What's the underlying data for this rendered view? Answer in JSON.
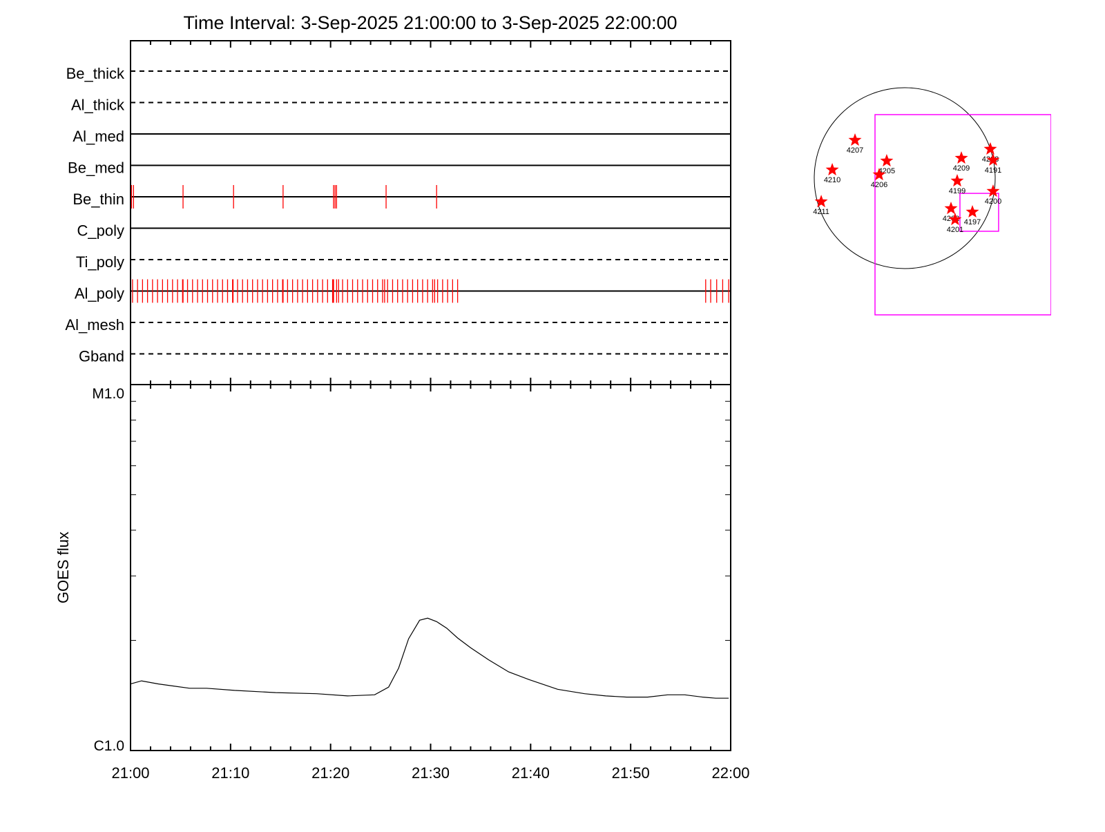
{
  "chart_data": [
    {
      "type": "event-timeline",
      "title": "Time Interval:  3-Sep-2025 21:00:00 to  3-Sep-2025 22:00:00",
      "x_unit": "minutes after 21:00",
      "xlim": [
        0,
        60
      ],
      "rows": [
        {
          "name": "Be_thick",
          "style": "dashed",
          "events": []
        },
        {
          "name": "Al_thick",
          "style": "dashed",
          "events": []
        },
        {
          "name": "Al_med",
          "style": "solid",
          "events": []
        },
        {
          "name": "Be_med",
          "style": "solid",
          "events": []
        },
        {
          "name": "Be_thin",
          "style": "solid",
          "events": [
            0.1,
            0.3,
            5.25,
            10.3,
            15.25,
            20.3,
            20.45,
            20.6,
            25.55,
            30.6
          ]
        },
        {
          "name": "C_poly",
          "style": "solid",
          "events": []
        },
        {
          "name": "Ti_poly",
          "style": "dashed",
          "events": []
        },
        {
          "name": "Al_poly",
          "style": "solid",
          "events": [
            0.2,
            0.7,
            1.2,
            1.7,
            2.2,
            2.7,
            3.2,
            3.7,
            4.2,
            4.7,
            5.2,
            5.25,
            5.7,
            6.2,
            6.7,
            7.2,
            7.7,
            8.2,
            8.7,
            9.2,
            9.7,
            10.2,
            10.25,
            10.7,
            11.2,
            11.7,
            12.2,
            12.7,
            13.2,
            13.7,
            14.2,
            14.7,
            15.2,
            15.25,
            15.7,
            16.2,
            16.7,
            17.2,
            17.7,
            18.2,
            18.7,
            19.2,
            19.7,
            20.2,
            20.25,
            20.3,
            20.6,
            20.8,
            21.2,
            21.7,
            22.2,
            22.7,
            23.2,
            23.7,
            24.2,
            24.7,
            25.2,
            25.4,
            25.7,
            26.2,
            26.7,
            27.2,
            27.7,
            28.2,
            28.7,
            29.2,
            29.7,
            30.2,
            30.4,
            30.7,
            31.2,
            31.7,
            32.2,
            32.7,
            57.5,
            58.0,
            58.6,
            59.2,
            59.8
          ]
        },
        {
          "name": "Al_mesh",
          "style": "dashed",
          "events": []
        },
        {
          "name": "Gband",
          "style": "dashed",
          "events": []
        }
      ],
      "event_color": "#ff0000"
    },
    {
      "type": "line",
      "ylabel": "GOES flux",
      "yscale": "log",
      "ylim": [
        1e-06,
        1e-05
      ],
      "ytick_labels": [
        {
          "value": 1e-05,
          "label": "M1.0"
        },
        {
          "value": 1e-06,
          "label": "C1.0"
        }
      ],
      "xlim": [
        0,
        60
      ],
      "xtick_labels": [
        "21:00",
        "21:10",
        "21:20",
        "21:30",
        "21:40",
        "21:50",
        "22:00"
      ],
      "x_minutes": [
        0,
        1.1,
        2.8,
        5.9,
        7.6,
        10.4,
        14.5,
        18.6,
        21.7,
        24.4,
        25.8,
        26.8,
        27.8,
        28.9,
        29.7,
        30.6,
        31.6,
        32.7,
        34.0,
        35.8,
        37.8,
        39.9,
        42.7,
        45.4,
        47.5,
        49.6,
        51.7,
        53.7,
        55.4,
        57.2,
        58.5,
        59.8
      ],
      "y": [
        1.52e-06,
        1.55e-06,
        1.52e-06,
        1.48e-06,
        1.48e-06,
        1.46e-06,
        1.44e-06,
        1.43e-06,
        1.41e-06,
        1.42e-06,
        1.49e-06,
        1.68e-06,
        2.02e-06,
        2.27e-06,
        2.3e-06,
        2.25e-06,
        2.16e-06,
        2.03e-06,
        1.91e-06,
        1.77e-06,
        1.64e-06,
        1.56e-06,
        1.47e-06,
        1.43e-06,
        1.41e-06,
        1.4e-06,
        1.4e-06,
        1.42e-06,
        1.42e-06,
        1.4e-06,
        1.39e-06,
        1.39e-06
      ],
      "color": "#000000"
    },
    {
      "type": "scatter",
      "unit": "arcsec",
      "solar_radius": 950,
      "marker": "star",
      "marker_color": "#ff0000",
      "box_color": "#ff00ff",
      "regions": [
        {
          "label": "4207",
          "x": -522,
          "y": 399
        },
        {
          "label": "4205",
          "x": -189,
          "y": 181
        },
        {
          "label": "4206",
          "x": -268,
          "y": 36
        },
        {
          "label": "4210",
          "x": -761,
          "y": 87
        },
        {
          "label": "4211",
          "x": -877,
          "y": -247
        },
        {
          "label": "4209",
          "x": 595,
          "y": 210
        },
        {
          "label": "4199",
          "x": 551,
          "y": -29
        },
        {
          "label": "4202",
          "x": 486,
          "y": -319
        },
        {
          "label": "4201",
          "x": 529,
          "y": -435
        },
        {
          "label": "4197",
          "x": 711,
          "y": -355
        },
        {
          "label": "4208",
          "x": 899,
          "y": 305
        },
        {
          "label": "4191",
          "x": 928,
          "y": 189
        },
        {
          "label": "4200",
          "x": 928,
          "y": -138
        }
      ],
      "boxes": [
        {
          "x0": -312,
          "x1": 1537,
          "y0": -1436,
          "y1": 667
        },
        {
          "x0": 580,
          "x1": 986,
          "y0": -558,
          "y1": -160
        }
      ]
    }
  ]
}
